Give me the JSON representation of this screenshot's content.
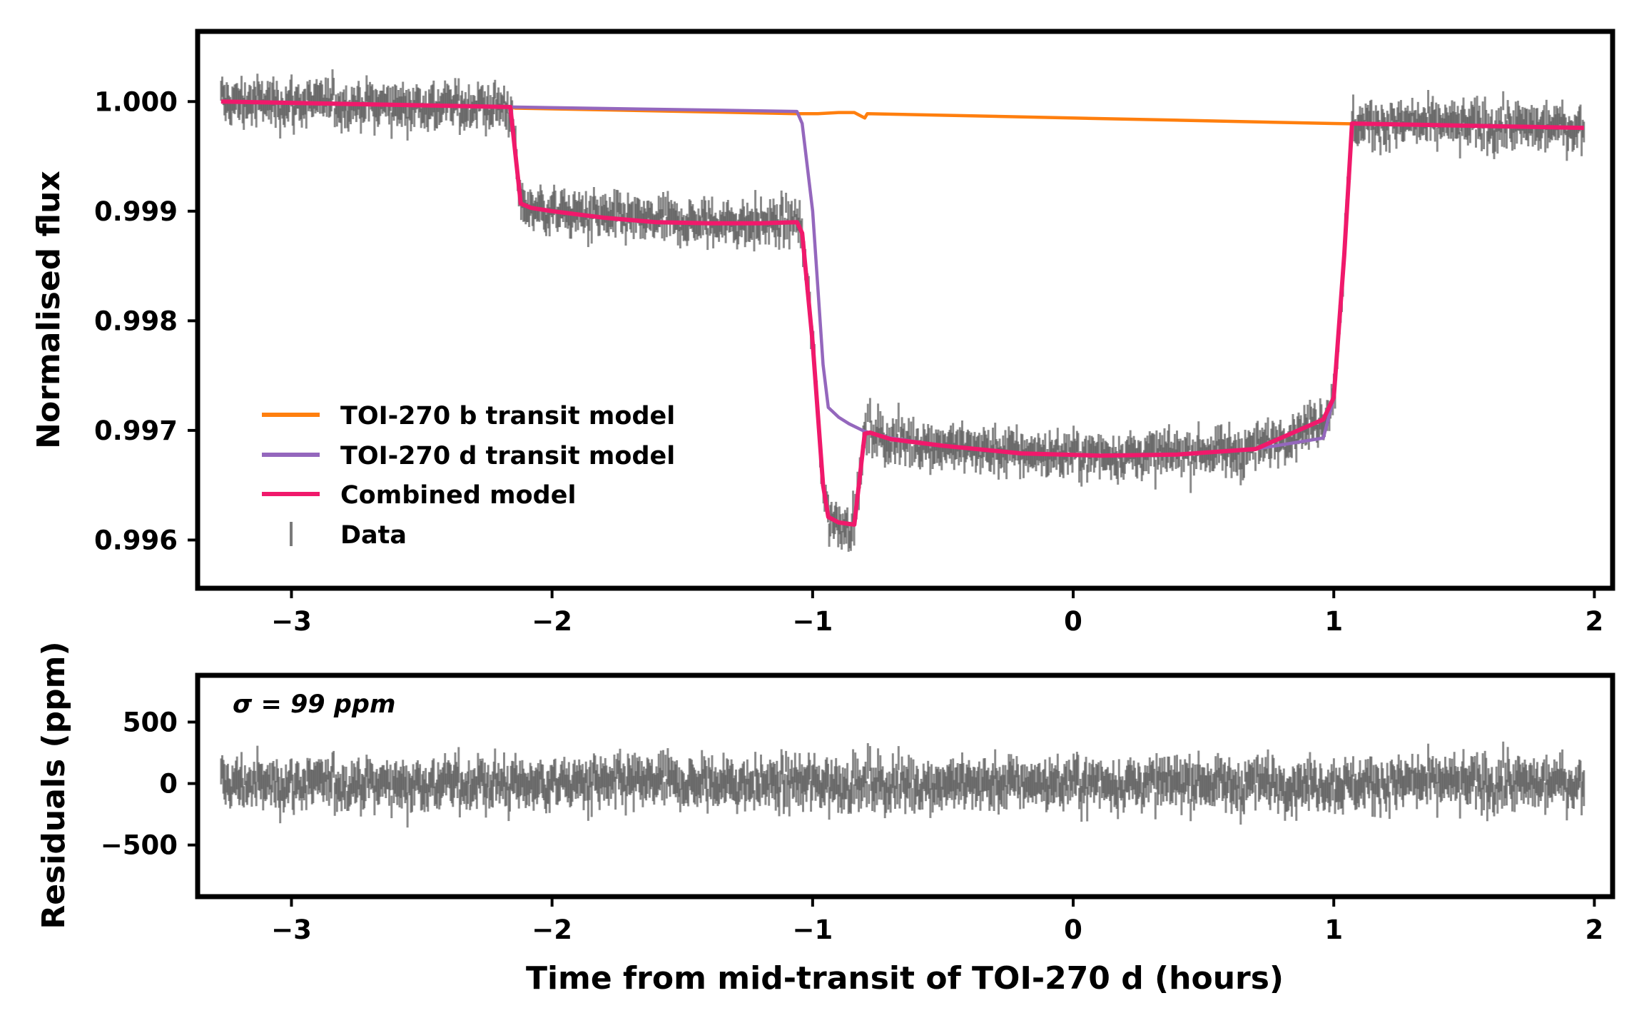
{
  "chart_data": [
    {
      "type": "line",
      "panel": "top",
      "ylabel": "Normalised flux",
      "xlabel": "",
      "xlim": [
        -3.36,
        2.07
      ],
      "ylim": [
        0.99556,
        1.00064
      ],
      "xticks": [
        -3,
        -2,
        -1,
        0,
        1,
        2
      ],
      "xtick_labels": [
        "−3",
        "−2",
        "−1",
        "0",
        "1",
        "2"
      ],
      "yticks": [
        1.0,
        0.999,
        0.998,
        0.997,
        0.996
      ],
      "ytick_labels": [
        "1.000",
        "0.999",
        "0.998",
        "0.997",
        "0.996"
      ],
      "legend_position": "lower-left",
      "series": [
        {
          "name": "TOI-270 b transit model",
          "color": "#ff7f0e",
          "x": [
            -3.27,
            -2.16,
            -2.14,
            -1.06,
            -0.98,
            -0.9,
            -0.84,
            -0.8,
            -0.79,
            1.0,
            1.96
          ],
          "y": [
            1.0,
            0.99995,
            0.99994,
            0.99989,
            0.99989,
            0.9999,
            0.9999,
            0.99985,
            0.99989,
            0.9998,
            0.99976
          ]
        },
        {
          "name": "TOI-270 d transit model",
          "color": "#9467bd",
          "x": [
            -3.27,
            -2.16,
            -1.06,
            -1.04,
            -1.0,
            -0.96,
            -0.94,
            -0.9,
            -0.86,
            -0.8,
            -0.7,
            -0.5,
            -0.2,
            0.1,
            0.4,
            0.7,
            0.96,
            1.0,
            1.04,
            1.07,
            1.96
          ],
          "y": [
            1.0,
            0.99995,
            0.99991,
            0.9998,
            0.999,
            0.9976,
            0.99721,
            0.99712,
            0.99706,
            0.99699,
            0.99693,
            0.99686,
            0.99679,
            0.99677,
            0.99678,
            0.99683,
            0.99693,
            0.9973,
            0.9986,
            0.9998,
            0.99976
          ]
        },
        {
          "name": "Combined model",
          "color": "#f0196b",
          "x": [
            -3.27,
            -2.16,
            -2.12,
            -2.08,
            -2.0,
            -1.8,
            -1.6,
            -1.4,
            -1.2,
            -1.06,
            -1.04,
            -1.0,
            -0.96,
            -0.94,
            -0.9,
            -0.84,
            -0.8,
            -0.78,
            -0.7,
            -0.5,
            -0.2,
            0.1,
            0.4,
            0.7,
            0.96,
            1.0,
            1.04,
            1.07,
            1.96
          ],
          "y": [
            1.0,
            0.99995,
            0.99907,
            0.99903,
            0.999,
            0.99894,
            0.9989,
            0.99889,
            0.99889,
            0.9989,
            0.9988,
            0.9978,
            0.9965,
            0.99621,
            0.99616,
            0.99614,
            0.99697,
            0.99698,
            0.99692,
            0.99686,
            0.99679,
            0.99677,
            0.99678,
            0.99683,
            0.9971,
            0.9973,
            0.9986,
            0.9998,
            0.99976
          ]
        },
        {
          "name": "Data",
          "color": "#595959",
          "style": "errorbar",
          "x_range": [
            -3.27,
            1.96
          ],
          "points": 1200,
          "follows": "Combined model",
          "scatter_ppm": 99
        }
      ]
    },
    {
      "type": "line",
      "panel": "bottom",
      "ylabel": "Residuals (ppm)",
      "xlabel": "Time from mid-transit of TOI-270 d (hours)",
      "xlim": [
        -3.36,
        2.07
      ],
      "ylim": [
        -920,
        880
      ],
      "xticks": [
        -3,
        -2,
        -1,
        0,
        1,
        2
      ],
      "xtick_labels": [
        "−3",
        "−2",
        "−1",
        "0",
        "1",
        "2"
      ],
      "yticks": [
        500,
        0,
        -500
      ],
      "ytick_labels": [
        "500",
        "0",
        "−500"
      ],
      "annotation": "σ = 99 ppm",
      "series": [
        {
          "name": "Residuals",
          "color": "#595959",
          "style": "errorbar",
          "x_range": [
            -3.27,
            1.96
          ],
          "points": 1200,
          "scatter_ppm": 99
        }
      ]
    }
  ]
}
